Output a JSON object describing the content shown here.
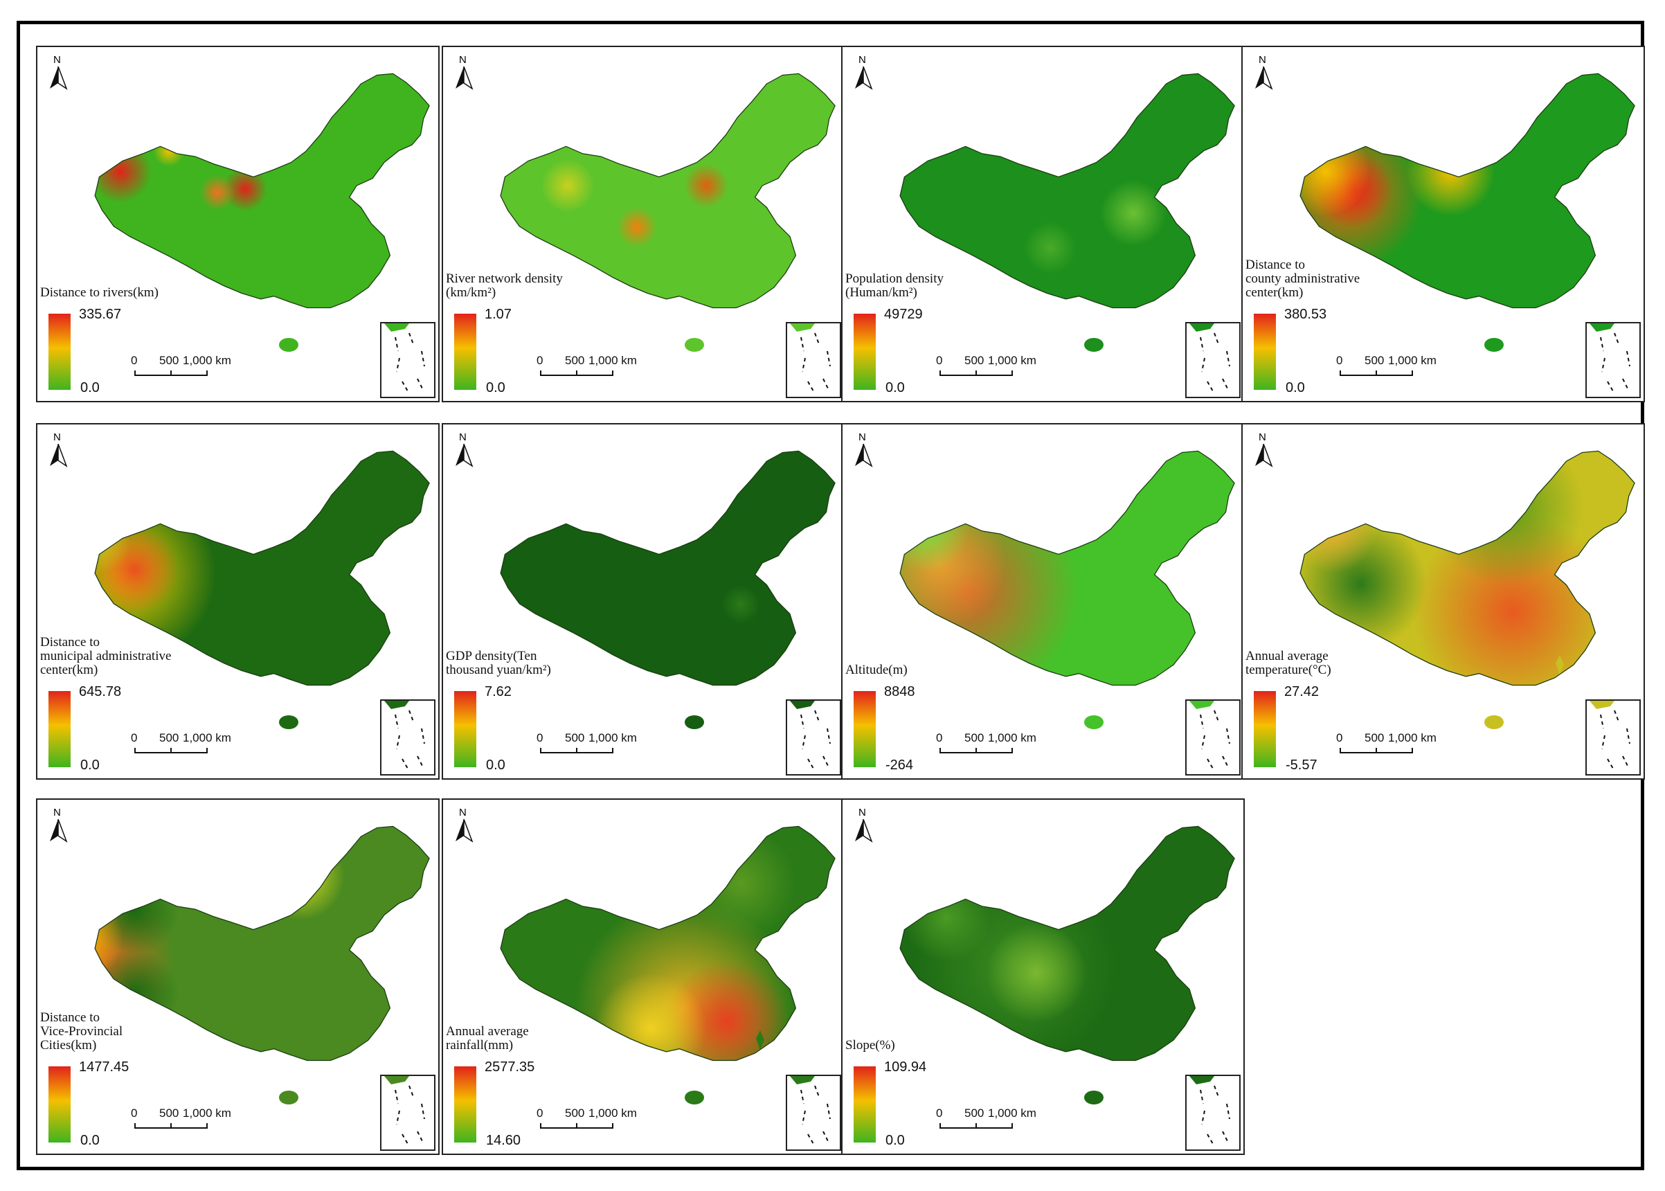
{
  "scale_labels": {
    "zero": "0",
    "mid": "500",
    "end": "1,000 km"
  },
  "north_label": "N",
  "panels": [
    {
      "title": "Distance to rivers(km)",
      "max": "335.67",
      "min": "0.0",
      "theme": "rivers"
    },
    {
      "title": "River network density\n(km/km²)",
      "max": "1.07",
      "min": "0.0",
      "theme": "rivernet"
    },
    {
      "title": "Population density\n(Human/km²)",
      "max": "49729",
      "min": "0.0",
      "theme": "pop"
    },
    {
      "title": "Distance to\ncounty administrative\ncenter(km)",
      "max": "380.53",
      "min": "0.0",
      "theme": "county"
    },
    {
      "title": "Distance to\nmunicipal administrative\ncenter(km)",
      "max": "645.78",
      "min": "0.0",
      "theme": "muni"
    },
    {
      "title": "GDP density(Ten\nthousand yuan/km²)",
      "max": "7.62",
      "min": "0.0",
      "theme": "gdp"
    },
    {
      "title": "Altitude(m)",
      "max": "8848",
      "min": "-264",
      "theme": "alt"
    },
    {
      "title": "Annual average\ntemperature(°C)",
      "max": "27.42",
      "min": "-5.57",
      "theme": "temp"
    },
    {
      "title": "Distance to\nVice-Provincial\nCities(km)",
      "max": "1477.45",
      "min": "0.0",
      "theme": "vice"
    },
    {
      "title": "Annual average\nrainfall(mm)",
      "max": "2577.35",
      "min": "14.60",
      "theme": "rain"
    },
    {
      "title": "Slope(%)",
      "max": "109.94",
      "min": "0.0",
      "theme": "slope"
    }
  ]
}
